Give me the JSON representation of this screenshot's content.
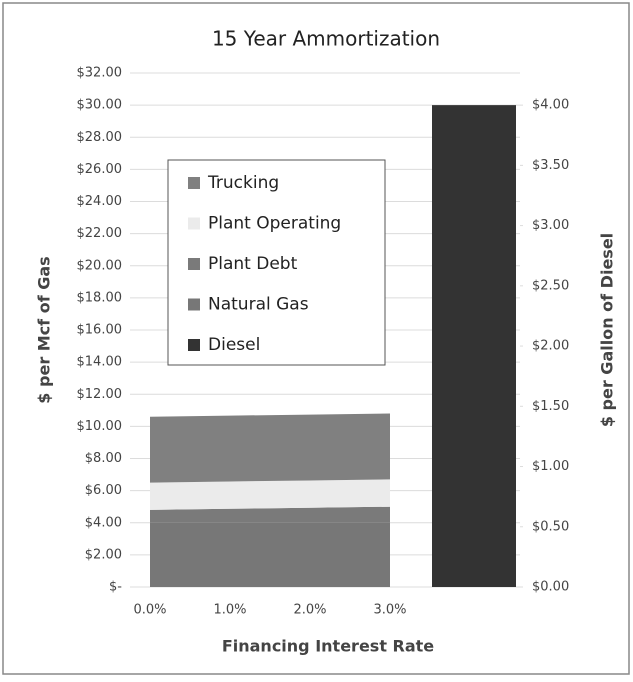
{
  "chart_data": {
    "type": "combo",
    "title": "15 Year Ammortization",
    "x_label": "Financing Interest Rate",
    "y_label": "$ per Mcf of Gas",
    "y2_label": "$ per Gallon of Diesel",
    "categories": [
      "0.0%",
      "1.0%",
      "2.0%",
      "3.0%",
      null
    ],
    "series": [
      {
        "name": "Trucking",
        "type": "area",
        "color": "#808080",
        "values": [
          4.1,
          4.1,
          4.1,
          4.1,
          null
        ]
      },
      {
        "name": "Plant Operating",
        "type": "area",
        "color": "#ebebeb",
        "values": [
          1.7,
          1.7,
          1.7,
          1.7,
          null
        ]
      },
      {
        "name": "Plant Debt",
        "type": "area",
        "color": "#7a7a7a",
        "values": [
          0.8,
          0.87,
          0.93,
          1.0,
          null
        ]
      },
      {
        "name": "Natural Gas",
        "type": "area",
        "color": "#777777",
        "values": [
          4.0,
          4.0,
          4.0,
          4.0,
          null
        ]
      },
      {
        "name": "Diesel",
        "type": "bar",
        "axis": "y2",
        "color": "#333333",
        "values": [
          null,
          null,
          null,
          null,
          4.0
        ]
      }
    ],
    "ylim": [
      0,
      32
    ],
    "yticks": [
      {
        "value": 0,
        "label": "$-"
      },
      {
        "value": 2,
        "label": "$2.00"
      },
      {
        "value": 4,
        "label": "$4.00"
      },
      {
        "value": 6,
        "label": "$6.00"
      },
      {
        "value": 8,
        "label": "$8.00"
      },
      {
        "value": 10,
        "label": "$10.00"
      },
      {
        "value": 12,
        "label": "$12.00"
      },
      {
        "value": 14,
        "label": "$14.00"
      },
      {
        "value": 16,
        "label": "$16.00"
      },
      {
        "value": 18,
        "label": "$18.00"
      },
      {
        "value": 20,
        "label": "$20.00"
      },
      {
        "value": 22,
        "label": "$22.00"
      },
      {
        "value": 24,
        "label": "$24.00"
      },
      {
        "value": 26,
        "label": "$26.00"
      },
      {
        "value": 28,
        "label": "$28.00"
      },
      {
        "value": 30,
        "label": "$30.00"
      },
      {
        "value": 32,
        "label": "$32.00"
      }
    ],
    "y2lim": [
      0,
      4.2667
    ],
    "y2ticks": [
      {
        "value": 0,
        "label": "$0.00"
      },
      {
        "value": 0.5,
        "label": "$0.50"
      },
      {
        "value": 1,
        "label": "$1.00"
      },
      {
        "value": 1.5,
        "label": "$1.50"
      },
      {
        "value": 2,
        "label": "$2.00"
      },
      {
        "value": 2.5,
        "label": "$2.50"
      },
      {
        "value": 3,
        "label": "$3.00"
      },
      {
        "value": 3.5,
        "label": "$3.50"
      },
      {
        "value": 4,
        "label": "$4.00"
      }
    ],
    "grid": true
  }
}
